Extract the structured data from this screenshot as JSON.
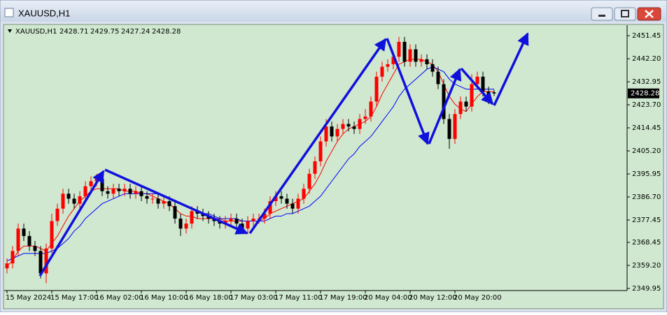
{
  "window_title": "XAUUSD,H1",
  "chart_data": {
    "type": "candlestick",
    "symbol": "XAUUSD,H1",
    "categories": [
      "15 May 2024",
      null,
      null,
      null,
      null,
      null,
      null,
      null,
      "15 May 17:00",
      null,
      null,
      null,
      null,
      null,
      null,
      null,
      "16 May 02:00",
      null,
      null,
      null,
      null,
      null,
      null,
      null,
      "16 May 10:00",
      null,
      null,
      null,
      null,
      null,
      null,
      null,
      "16 May 18:00",
      null,
      null,
      null,
      null,
      null,
      null,
      null,
      "17 May 03:00",
      null,
      null,
      null,
      null,
      null,
      null,
      null,
      "17 May 11:00",
      null,
      null,
      null,
      null,
      null,
      null,
      null,
      "17 May 19:00",
      null,
      null,
      null,
      null,
      null,
      null,
      null,
      "20 May 04:00",
      null,
      null,
      null,
      null,
      null,
      null,
      null,
      "20 May 12:00",
      null,
      null,
      null,
      null,
      null,
      null,
      null,
      "20 May 20:00",
      null,
      null,
      null,
      null,
      null,
      null,
      null
    ],
    "open": [
      2358,
      2360,
      2365,
      2374,
      2371,
      2367,
      2365,
      2356,
      2366,
      2377,
      2382,
      2388,
      2386,
      2384,
      2387,
      2391,
      2393,
      2394,
      2389,
      2388,
      2390,
      2389,
      2390,
      2388,
      2389,
      2387,
      2386,
      2386,
      2384,
      2385,
      2383,
      2378,
      2374,
      2376,
      2381,
      2380,
      2379,
      2378,
      2377,
      2376,
      2377,
      2378,
      2376,
      2374,
      2377,
      2378,
      2378,
      2380,
      2385,
      2387,
      2386,
      2384,
      2382,
      2386,
      2390,
      2396,
      2401,
      2409,
      2415,
      2411,
      2414,
      2416,
      2415,
      2414,
      2418,
      2419,
      2425,
      2435,
      2439,
      2440,
      2443,
      2449,
      2441,
      2446,
      2441,
      2442,
      2440,
      2437,
      2432,
      2418,
      2410,
      2420,
      2425,
      2423,
      2432,
      2435,
      2429,
      2428.71
    ],
    "high": [
      2362,
      2367,
      2376,
      2376,
      2373,
      2369,
      2367,
      2368,
      2380,
      2384,
      2390,
      2390,
      2388,
      2389,
      2393,
      2395,
      2396,
      2396,
      2391,
      2392,
      2392,
      2392,
      2392,
      2391,
      2391,
      2389,
      2388,
      2388,
      2387,
      2387,
      2385,
      2380,
      2378,
      2383,
      2383,
      2382,
      2381,
      2380,
      2379,
      2379,
      2380,
      2380,
      2378,
      2379,
      2380,
      2380,
      2382,
      2387,
      2389,
      2389,
      2388,
      2386,
      2388,
      2392,
      2398,
      2403,
      2411,
      2418,
      2417,
      2416,
      2418,
      2418,
      2417,
      2420,
      2422,
      2427,
      2437,
      2441,
      2442,
      2445,
      2451,
      2451,
      2448,
      2448,
      2444,
      2444,
      2442,
      2439,
      2434,
      2420,
      2422,
      2427,
      2427,
      2436,
      2437,
      2437,
      2431,
      2429.75
    ],
    "low": [
      2356,
      2358,
      2363,
      2369,
      2365,
      2363,
      2354,
      2352,
      2364,
      2375,
      2380,
      2384,
      2382,
      2382,
      2385,
      2389,
      2391,
      2387,
      2386,
      2386,
      2387,
      2387,
      2386,
      2386,
      2385,
      2384,
      2384,
      2382,
      2382,
      2381,
      2376,
      2371,
      2372,
      2374,
      2378,
      2377,
      2376,
      2375,
      2374,
      2374,
      2375,
      2374,
      2372,
      2372,
      2375,
      2376,
      2376,
      2378,
      2383,
      2384,
      2382,
      2380,
      2380,
      2384,
      2388,
      2394,
      2399,
      2407,
      2409,
      2409,
      2412,
      2413,
      2412,
      2412,
      2416,
      2417,
      2423,
      2433,
      2437,
      2438,
      2441,
      2439,
      2439,
      2439,
      2439,
      2438,
      2435,
      2430,
      2416,
      2406,
      2408,
      2418,
      2421,
      2421,
      2430,
      2427,
      2424,
      2427.24
    ],
    "close": [
      2360,
      2365,
      2374,
      2371,
      2367,
      2365,
      2356,
      2366,
      2377,
      2382,
      2388,
      2386,
      2384,
      2387,
      2391,
      2393,
      2394,
      2389,
      2388,
      2390,
      2389,
      2390,
      2388,
      2389,
      2387,
      2386,
      2386,
      2384,
      2385,
      2383,
      2378,
      2374,
      2376,
      2381,
      2380,
      2379,
      2378,
      2377,
      2376,
      2377,
      2378,
      2376,
      2374,
      2377,
      2378,
      2378,
      2380,
      2385,
      2387,
      2386,
      2384,
      2382,
      2386,
      2390,
      2396,
      2401,
      2409,
      2415,
      2411,
      2414,
      2416,
      2415,
      2414,
      2418,
      2419,
      2425,
      2435,
      2439,
      2440,
      2443,
      2449,
      2441,
      2446,
      2441,
      2442,
      2440,
      2437,
      2432,
      2418,
      2410,
      2420,
      2425,
      2423,
      2432,
      2435,
      2429,
      2426,
      2428.28
    ],
    "up_color": "#ff0000",
    "down_color": "#000000",
    "series": [
      {
        "color": "#ff0000",
        "values": [
          2359,
          2361,
          2365,
          2367,
          2367,
          2367,
          2366,
          2365,
          2368,
          2371,
          2375,
          2379,
          2382,
          2385,
          2387,
          2389,
          2390,
          2390,
          2390,
          2390,
          2390,
          2389,
          2389,
          2389,
          2388,
          2388,
          2387,
          2386,
          2385,
          2384,
          2382,
          2380,
          2379,
          2379,
          2378,
          2378,
          2378,
          2378,
          2378,
          2377,
          2377,
          2377,
          2377,
          2377,
          2377,
          2377,
          2378,
          2380,
          2381,
          2382,
          2383,
          2384,
          2385,
          2386,
          2389,
          2392,
          2396,
          2401,
          2405,
          2409,
          2412,
          2414,
          2415,
          2416,
          2417,
          2419,
          2423,
          2428,
          2432,
          2436,
          2440,
          2441,
          2442,
          2442,
          2442,
          2441,
          2440,
          2437,
          2432,
          2427,
          2424,
          2422,
          2421,
          2424,
          2427,
          2429,
          2429,
          2429
        ]
      },
      {
        "color": "#0000ff",
        "values": [
          2361,
          2362,
          2363,
          2364,
          2364,
          2364,
          2364,
          2364,
          2365,
          2366,
          2368,
          2370,
          2373,
          2375,
          2378,
          2380,
          2382,
          2384,
          2385,
          2386,
          2387,
          2388,
          2388,
          2388,
          2388,
          2388,
          2388,
          2388,
          2387,
          2386,
          2385,
          2384,
          2383,
          2382,
          2381,
          2380,
          2380,
          2379,
          2378,
          2378,
          2378,
          2378,
          2377,
          2377,
          2377,
          2377,
          2377,
          2378,
          2379,
          2379,
          2380,
          2380,
          2381,
          2382,
          2383,
          2385,
          2387,
          2390,
          2393,
          2396,
          2399,
          2402,
          2404,
          2407,
          2409,
          2411,
          2414,
          2417,
          2420,
          2423,
          2427,
          2430,
          2432,
          2434,
          2436,
          2438,
          2439,
          2438,
          2437,
          2434,
          2432,
          2431,
          2430,
          2430,
          2430,
          2430,
          2430,
          2430
        ]
      }
    ],
    "ylim": [
      2349.1,
      2455.7
    ],
    "yticks": [
      2349.95,
      {
        "value": 2359.2,
        "label": "2359.20"
      },
      2368.45,
      2377.45,
      {
        "value": 2386.7,
        "label": "2386.70"
      },
      2395.95,
      {
        "value": 2405.2,
        "label": "2405.20"
      },
      2414.45,
      {
        "value": 2423.7,
        "label": "2423.70"
      },
      2432.95,
      {
        "value": 2442.2,
        "label": "2442.20"
      },
      2451.45
    ]
  }
}
